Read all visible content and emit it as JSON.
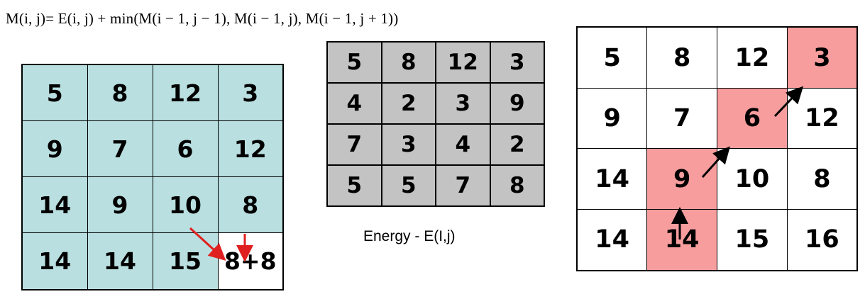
{
  "formula": "M(i, j)= E(i, j) + min(M(i − 1, j − 1), M(i − 1, j), M(i − 1, j + 1))",
  "left_matrix": [
    [
      "5",
      "8",
      "12",
      "3"
    ],
    [
      "9",
      "7",
      "6",
      "12"
    ],
    [
      "14",
      "9",
      "10",
      "8"
    ],
    [
      "14",
      "14",
      "15",
      "8+8"
    ]
  ],
  "energy_matrix": [
    [
      "5",
      "8",
      "12",
      "3"
    ],
    [
      "4",
      "2",
      "3",
      "9"
    ],
    [
      "7",
      "3",
      "4",
      "2"
    ],
    [
      "5",
      "5",
      "7",
      "8"
    ]
  ],
  "energy_label": "Energy - E(I,j)",
  "result_matrix": [
    [
      "5",
      "8",
      "12",
      "3"
    ],
    [
      "9",
      "7",
      "6",
      "12"
    ],
    [
      "14",
      "9",
      "10",
      "8"
    ],
    [
      "14",
      "14",
      "15",
      "16"
    ]
  ],
  "result_path_cells": [
    [
      0,
      3
    ],
    [
      1,
      2
    ],
    [
      2,
      1
    ],
    [
      3,
      1
    ]
  ],
  "colors": {
    "left_fill": "#b9dfe0",
    "energy_fill": "#c3c3c3",
    "path_fill": "#f79d9d",
    "red_arrow": "#e02020",
    "black_arrow": "#000000"
  }
}
